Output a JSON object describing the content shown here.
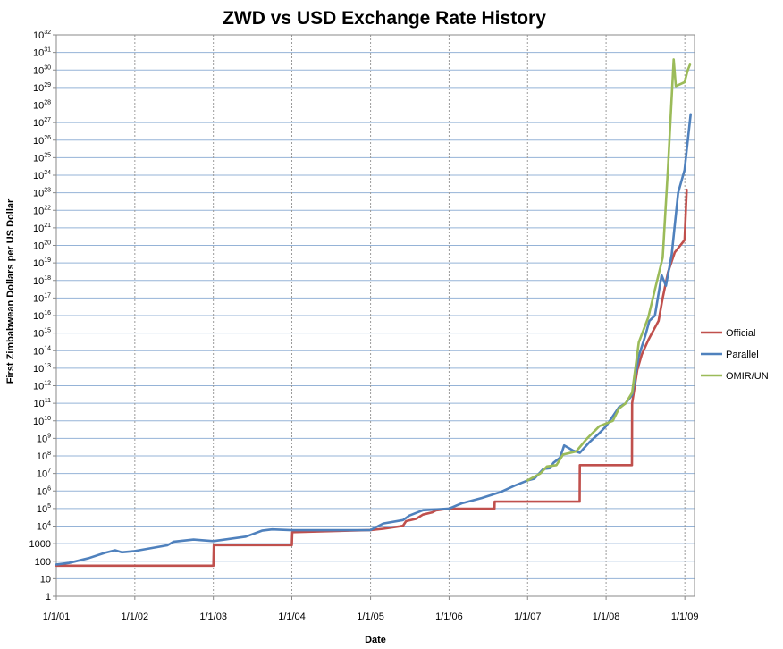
{
  "chart_data": {
    "type": "line",
    "title": "ZWD vs USD Exchange Rate History",
    "xlabel": "Date",
    "ylabel": "First Zimbabwean Dollars per US Dollar",
    "y_scale": "log",
    "ylim": [
      1,
      1e+32
    ],
    "xlim": [
      "2001-01-01",
      "2009-02-15"
    ],
    "x_ticks": [
      "1/1/01",
      "1/1/02",
      "1/1/03",
      "1/1/04",
      "1/1/05",
      "1/1/06",
      "1/1/07",
      "1/1/08",
      "1/1/09"
    ],
    "x_tick_dates": [
      "2001-01-01",
      "2002-01-01",
      "2003-01-01",
      "2004-01-01",
      "2005-01-01",
      "2006-01-01",
      "2007-01-01",
      "2008-01-01",
      "2009-01-01"
    ],
    "y_ticks": [
      {
        "base": "1",
        "exp": ""
      },
      {
        "base": "10",
        "exp": ""
      },
      {
        "base": "100",
        "exp": ""
      },
      {
        "base": "1000",
        "exp": ""
      },
      {
        "base": "10",
        "exp": "4"
      },
      {
        "base": "10",
        "exp": "5"
      },
      {
        "base": "10",
        "exp": "6"
      },
      {
        "base": "10",
        "exp": "7"
      },
      {
        "base": "10",
        "exp": "8"
      },
      {
        "base": "10",
        "exp": "9"
      },
      {
        "base": "10",
        "exp": "10"
      },
      {
        "base": "10",
        "exp": "11"
      },
      {
        "base": "10",
        "exp": "12"
      },
      {
        "base": "10",
        "exp": "13"
      },
      {
        "base": "10",
        "exp": "14"
      },
      {
        "base": "10",
        "exp": "15"
      },
      {
        "base": "10",
        "exp": "16"
      },
      {
        "base": "10",
        "exp": "17"
      },
      {
        "base": "10",
        "exp": "18"
      },
      {
        "base": "10",
        "exp": "19"
      },
      {
        "base": "10",
        "exp": "20"
      },
      {
        "base": "10",
        "exp": "21"
      },
      {
        "base": "10",
        "exp": "22"
      },
      {
        "base": "10",
        "exp": "23"
      },
      {
        "base": "10",
        "exp": "24"
      },
      {
        "base": "10",
        "exp": "25"
      },
      {
        "base": "10",
        "exp": "26"
      },
      {
        "base": "10",
        "exp": "27"
      },
      {
        "base": "10",
        "exp": "28"
      },
      {
        "base": "10",
        "exp": "29"
      },
      {
        "base": "10",
        "exp": "30"
      },
      {
        "base": "10",
        "exp": "31"
      },
      {
        "base": "10",
        "exp": "32"
      }
    ],
    "grid": true,
    "legend_position": "right",
    "series": [
      {
        "name": "Official",
        "color": "#c0504d",
        "points": [
          [
            "2001-01-01",
            55
          ],
          [
            "2003-01-01",
            55
          ],
          [
            "2003-01-03",
            824
          ],
          [
            "2004-01-01",
            824
          ],
          [
            "2004-01-03",
            4500
          ],
          [
            "2005-01-01",
            6000
          ],
          [
            "2005-03-01",
            7000
          ],
          [
            "2005-05-15",
            9500
          ],
          [
            "2005-06-01",
            10500
          ],
          [
            "2005-06-15",
            19000
          ],
          [
            "2005-08-01",
            26000
          ],
          [
            "2005-09-01",
            45000
          ],
          [
            "2005-10-15",
            61000
          ],
          [
            "2005-11-01",
            78000
          ],
          [
            "2006-01-01",
            99000
          ],
          [
            "2006-07-31",
            99000
          ],
          [
            "2006-08-01",
            250000
          ],
          [
            "2007-08-31",
            250000
          ],
          [
            "2007-09-01",
            30000000
          ],
          [
            "2008-04-30",
            30000000
          ],
          [
            "2008-05-01",
            100000000000.0
          ],
          [
            "2008-05-25",
            8000000000000.0
          ],
          [
            "2008-06-15",
            60000000000000.0
          ],
          [
            "2008-07-15",
            400000000000000.0
          ],
          [
            "2008-08-01",
            1000000000000000.0
          ],
          [
            "2008-09-01",
            5000000000000000.0
          ],
          [
            "2008-09-20",
            1e+17
          ],
          [
            "2008-10-15",
            3e+18
          ],
          [
            "2008-11-15",
            4e+19
          ],
          [
            "2008-12-31",
            2e+20
          ],
          [
            "2009-01-10",
            1.5e+23
          ]
        ]
      },
      {
        "name": "Parallel",
        "color": "#4f81bd",
        "points": [
          [
            "2001-01-01",
            65
          ],
          [
            "2001-03-01",
            80
          ],
          [
            "2001-06-01",
            150
          ],
          [
            "2001-08-15",
            300
          ],
          [
            "2001-10-01",
            420
          ],
          [
            "2001-11-01",
            320
          ],
          [
            "2002-01-01",
            380
          ],
          [
            "2002-06-01",
            800
          ],
          [
            "2002-07-01",
            1300
          ],
          [
            "2002-10-01",
            1700
          ],
          [
            "2003-01-01",
            1400
          ],
          [
            "2003-06-01",
            2500
          ],
          [
            "2003-08-15",
            5500
          ],
          [
            "2003-10-01",
            6500
          ],
          [
            "2004-01-01",
            5800
          ],
          [
            "2004-06-01",
            5800
          ],
          [
            "2005-01-01",
            6000
          ],
          [
            "2005-03-01",
            14000
          ],
          [
            "2005-06-01",
            22000
          ],
          [
            "2005-07-01",
            40000
          ],
          [
            "2005-09-01",
            80000
          ],
          [
            "2006-01-01",
            100000
          ],
          [
            "2006-03-01",
            200000
          ],
          [
            "2006-06-01",
            400000
          ],
          [
            "2006-09-01",
            900000
          ],
          [
            "2006-11-01",
            2000000
          ],
          [
            "2007-01-01",
            4000000
          ],
          [
            "2007-02-01",
            5000000
          ],
          [
            "2007-03-15",
            18000000
          ],
          [
            "2007-04-15",
            20000000
          ],
          [
            "2007-05-01",
            40000000
          ],
          [
            "2007-06-01",
            80000000
          ],
          [
            "2007-06-20",
            400000000
          ],
          [
            "2007-08-01",
            200000000
          ],
          [
            "2007-09-01",
            150000000.0
          ],
          [
            "2007-10-15",
            600000000.0
          ],
          [
            "2007-12-01",
            2000000000.0
          ],
          [
            "2008-01-01",
            5000000000.0
          ],
          [
            "2008-03-01",
            60000000000.0
          ],
          [
            "2008-04-01",
            100000000000.0
          ],
          [
            "2008-05-01",
            300000000000.0
          ],
          [
            "2008-06-01",
            50000000000000.0
          ],
          [
            "2008-07-01",
            700000000000000.0
          ],
          [
            "2008-07-20",
            5000000000000000.0
          ],
          [
            "2008-08-15",
            1e+16
          ],
          [
            "2008-09-15",
            2e+18
          ],
          [
            "2008-10-05",
            5e+17
          ],
          [
            "2008-11-01",
            3e+19
          ],
          [
            "2008-12-01",
            1e+23
          ],
          [
            "2008-12-31",
            2e+24
          ],
          [
            "2009-01-15",
            1e+26
          ],
          [
            "2009-01-28",
            3e+27
          ]
        ]
      },
      {
        "name": "OMIR/UN",
        "color": "#9bbb59",
        "points": [
          [
            "2007-01-01",
            4000000
          ],
          [
            "2007-03-01",
            10000000
          ],
          [
            "2007-04-01",
            25000000
          ],
          [
            "2007-05-15",
            30000000
          ],
          [
            "2007-06-15",
            120000000
          ],
          [
            "2007-08-15",
            180000000
          ],
          [
            "2007-10-01",
            900000000.0
          ],
          [
            "2007-12-01",
            5000000000.0
          ],
          [
            "2008-02-01",
            10000000000.0
          ],
          [
            "2008-03-01",
            50000000000.0
          ],
          [
            "2008-04-01",
            100000000000.0
          ],
          [
            "2008-05-01",
            400000000000.0
          ],
          [
            "2008-06-01",
            300000000000000.0
          ],
          [
            "2008-07-15",
            8000000000000000.0
          ],
          [
            "2008-08-15",
            3e+17
          ],
          [
            "2008-09-20",
            2e+19
          ],
          [
            "2008-10-15",
            3e+24
          ],
          [
            "2008-11-10",
            4e+30
          ],
          [
            "2008-11-20",
            1.2e+29
          ],
          [
            "2008-12-31",
            2e+29
          ],
          [
            "2009-01-15",
            1e+30
          ],
          [
            "2009-01-25",
            2e+30
          ]
        ]
      }
    ]
  }
}
